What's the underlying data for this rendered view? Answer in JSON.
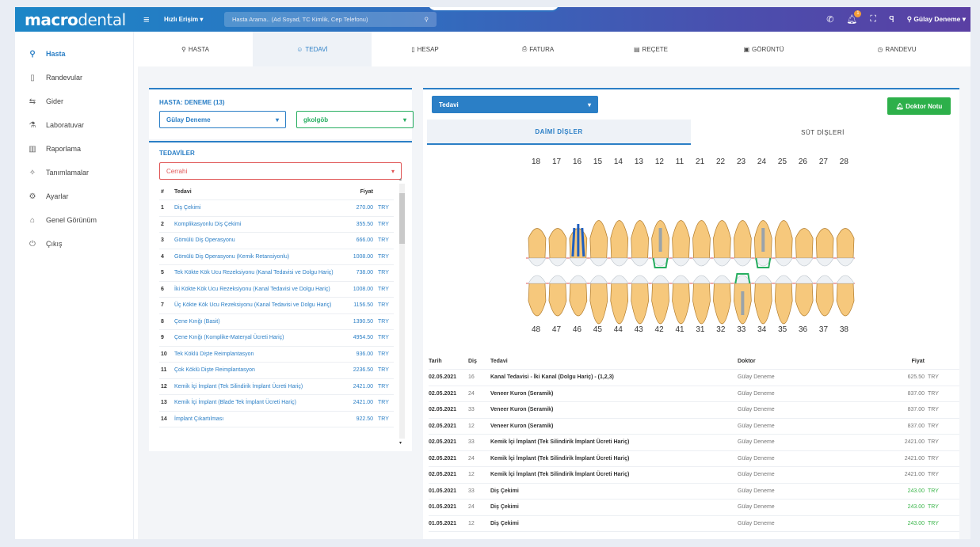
{
  "app": {
    "logo_bold": "macro",
    "logo_thin": "dental",
    "quick_access": "Hızlı Erişim ▾",
    "search_placeholder": "Hasta Arama.. (Ad Soyad, TC Kimlik, Cep Telefonu)",
    "notif_count": "1",
    "user": "Gülay Deneme ▾"
  },
  "sidebar": [
    {
      "label": "Hasta",
      "icon": "⚲"
    },
    {
      "label": "Randevular",
      "icon": "▯"
    },
    {
      "label": "Gider",
      "icon": "⇆"
    },
    {
      "label": "Laboratuvar",
      "icon": "⚗"
    },
    {
      "label": "Raporlama",
      "icon": "▥"
    },
    {
      "label": "Tanımlamalar",
      "icon": "✧"
    },
    {
      "label": "Ayarlar",
      "icon": "⚙"
    },
    {
      "label": "Genel Görünüm",
      "icon": "⌂"
    },
    {
      "label": "Çıkış",
      "icon": "⏻"
    }
  ],
  "tabs": [
    {
      "label": "HASTA",
      "icon": "⚲"
    },
    {
      "label": "TEDAVİ",
      "icon": "☺"
    },
    {
      "label": "HESAP",
      "icon": "▯"
    },
    {
      "label": "FATURA",
      "icon": "⎙"
    },
    {
      "label": "REÇETE",
      "icon": "▤"
    },
    {
      "label": "GÖRÜNTÜ",
      "icon": "▣"
    },
    {
      "label": "RANDEVU",
      "icon": "◷"
    }
  ],
  "patient": {
    "title": "HASTA: DENEME (13)",
    "doctor_select": "Gülay Deneme",
    "second_select": "gkolgöb"
  },
  "treatments": {
    "title": "TEDAVİLER",
    "category": "Cerrahi",
    "col_num": "#",
    "col_name": "Tedavi",
    "col_price": "Fiyat",
    "rows": [
      [
        "1",
        "Diş Çekimi",
        "270.00",
        "TRY"
      ],
      [
        "2",
        "Komplikasyonlu Diş Çekimi",
        "355.50",
        "TRY"
      ],
      [
        "3",
        "Gömülü Diş Operasyonu",
        "666.00",
        "TRY"
      ],
      [
        "4",
        "Gömülü Diş Operasyonu (Kemik Retansiyonlu)",
        "1008.00",
        "TRY"
      ],
      [
        "5",
        "Tek Kökte Kök Ucu Rezeksiyonu (Kanal Tedavisi ve Dolgu Hariç)",
        "738.00",
        "TRY"
      ],
      [
        "6",
        "İki Kökte Kök Ucu Rezeksiyonu (Kanal Tedavisi ve Dolgu Hariç)",
        "1008.00",
        "TRY"
      ],
      [
        "7",
        "Üç Kökte Kök Ucu Rezeksiyonu (Kanal Tedavisi ve Dolgu Hariç)",
        "1156.50",
        "TRY"
      ],
      [
        "8",
        "Çene Kırığı (Basit)",
        "1390.50",
        "TRY"
      ],
      [
        "9",
        "Çene Kırığı (Komplike-Materyal Ücreti Hariç)",
        "4954.50",
        "TRY"
      ],
      [
        "10",
        "Tek Köklü Dişte Reimplantasyon",
        "936.00",
        "TRY"
      ],
      [
        "11",
        "Çok Köklü Dişte Reimplantasyon",
        "2236.50",
        "TRY"
      ],
      [
        "12",
        "Kemik İçi İmplant (Tek Silindirik İmplant Ücreti Hariç)",
        "2421.00",
        "TRY"
      ],
      [
        "13",
        "Kemik İçi İmplant (Blade Tek İmplant Ücreti Hariç)",
        "2421.00",
        "TRY"
      ],
      [
        "14",
        "İmplant Çıkartılması",
        "922.50",
        "TRY"
      ]
    ]
  },
  "chart": {
    "mode_select": "Tedavi",
    "doctor_note": "Doktor Notu",
    "tab_permanent": "DAİMİ DİŞLER",
    "tab_milk": "SÜT DİŞLERİ",
    "upper": [
      "18",
      "17",
      "16",
      "15",
      "14",
      "13",
      "12",
      "11",
      "21",
      "22",
      "23",
      "24",
      "25",
      "26",
      "27",
      "28"
    ],
    "lower": [
      "48",
      "47",
      "46",
      "45",
      "44",
      "43",
      "42",
      "41",
      "31",
      "32",
      "33",
      "34",
      "35",
      "36",
      "37",
      "38"
    ]
  },
  "history": {
    "cols": [
      "Tarih",
      "Diş",
      "Tedavi",
      "Doktor",
      "Fiyat"
    ],
    "rows": [
      [
        "02.05.2021",
        "16",
        "Kanal Tedavisi - İki Kanal (Dolgu Hariç) - (1,2,3)",
        "Gülay Deneme",
        "625.50",
        "TRY"
      ],
      [
        "02.05.2021",
        "24",
        "Veneer Kuron (Seramik)",
        "Gülay Deneme",
        "837.00",
        "TRY"
      ],
      [
        "02.05.2021",
        "33",
        "Veneer Kuron (Seramik)",
        "Gülay Deneme",
        "837.00",
        "TRY"
      ],
      [
        "02.05.2021",
        "12",
        "Veneer Kuron (Seramik)",
        "Gülay Deneme",
        "837.00",
        "TRY"
      ],
      [
        "02.05.2021",
        "33",
        "Kemik İçi İmplant (Tek Silindirik İmplant Ücreti Hariç)",
        "Gülay Deneme",
        "2421.00",
        "TRY"
      ],
      [
        "02.05.2021",
        "24",
        "Kemik İçi İmplant (Tek Silindirik İmplant Ücreti Hariç)",
        "Gülay Deneme",
        "2421.00",
        "TRY"
      ],
      [
        "02.05.2021",
        "12",
        "Kemik İçi İmplant (Tek Silindirik İmplant Ücreti Hariç)",
        "Gülay Deneme",
        "2421.00",
        "TRY"
      ],
      [
        "01.05.2021",
        "33",
        "Diş Çekimi",
        "Gülay Deneme",
        "243.00",
        "TRY"
      ],
      [
        "01.05.2021",
        "24",
        "Diş Çekimi",
        "Gülay Deneme",
        "243.00",
        "TRY"
      ],
      [
        "01.05.2021",
        "12",
        "Diş Çekimi",
        "Gülay Deneme",
        "243.00",
        "TRY"
      ]
    ]
  },
  "colors": {
    "accent": "#2b7fc6",
    "green": "#27ae60",
    "red": "#e05555"
  }
}
